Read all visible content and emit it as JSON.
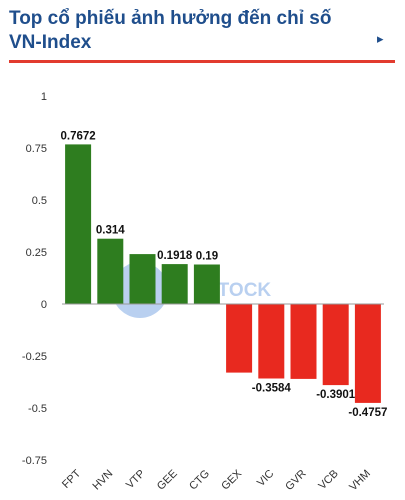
{
  "header": {
    "title": "Top cổ phiếu ảnh hưởng đến chỉ số VN-Index",
    "more_icon": "chevron-right-icon",
    "accent_color": "#e23b2e",
    "title_color": "#1f4e8c"
  },
  "watermark": {
    "text": "STOCK"
  },
  "chart_data": {
    "type": "bar",
    "title": "Top cổ phiếu ảnh hưởng đến chỉ số VN-Index",
    "xlabel": "",
    "ylabel": "",
    "categories": [
      "FPT",
      "HVN",
      "VTP",
      "GEE",
      "CTG",
      "GEX",
      "VIC",
      "GVR",
      "VCB",
      "VHM"
    ],
    "values": [
      0.7672,
      0.314,
      0.24,
      0.1918,
      0.19,
      -0.33,
      -0.3584,
      -0.36,
      -0.3901,
      -0.4757
    ],
    "data_labels": [
      "0.7672",
      "0.314",
      "",
      "0.1918",
      "0.19",
      "",
      "-0.3584",
      "",
      "-0.3901",
      "-0.4757"
    ],
    "yticks": [
      "1",
      "0.75",
      "0.5",
      "0.25",
      "0",
      "-0.25",
      "-0.5",
      "-0.75"
    ],
    "ylim": [
      -0.75,
      1
    ],
    "grid": false,
    "colors": {
      "positive": "#2e7d1f",
      "negative": "#e8291f",
      "zero_line": "#999999"
    }
  }
}
